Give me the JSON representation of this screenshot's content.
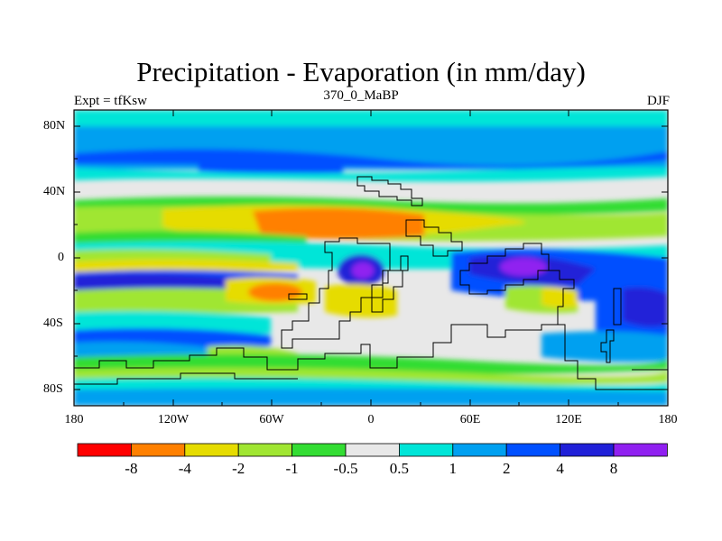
{
  "title": "Precipitation - Evaporation (in mm/day)",
  "subtitle": "370_0_MaBP",
  "left_label": "Expt = tfKsw",
  "right_label": "DJF",
  "y_ticks": [
    "80N",
    "40N",
    "0",
    "40S",
    "80S"
  ],
  "x_ticks": [
    "180",
    "120W",
    "60W",
    "0",
    "60E",
    "120E",
    "180"
  ],
  "colorbar": {
    "colors": [
      "#ff0000",
      "#ff8000",
      "#e6dc00",
      "#a0e632",
      "#33dd33",
      "#e8e8e8",
      "#00e5d8",
      "#00a0f0",
      "#0050ff",
      "#2020d8",
      "#9020f0"
    ],
    "labels": [
      "-8",
      "-4",
      "-2",
      "-1",
      "-0.5",
      "0.5",
      "1",
      "2",
      "4",
      "8"
    ]
  }
}
